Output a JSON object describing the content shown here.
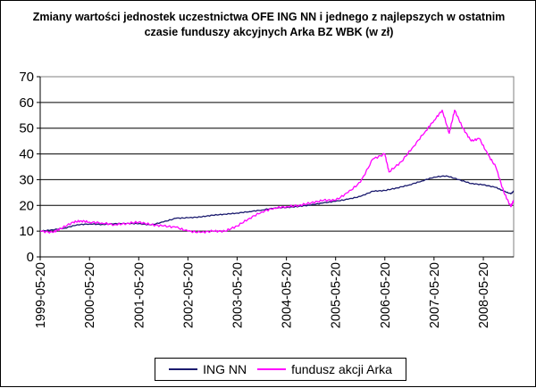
{
  "chart_data": {
    "type": "line",
    "title": "Zmiany wartości jednostek uczestnictwa OFE ING NN i jednego z najlepszych w ostatnim czasie funduszy akcyjnych Arka BZ WBK (w zł)",
    "xlabel": "",
    "ylabel": "",
    "ylim": [
      0,
      70
    ],
    "yticks": [
      0,
      10,
      20,
      30,
      40,
      50,
      60,
      70
    ],
    "xlim": [
      "1999-05-20",
      "2008-12-31"
    ],
    "x_tick_labels": [
      "1999-05-20",
      "2000-05-20",
      "2001-05-20",
      "2002-05-20",
      "2003-05-20",
      "2004-05-20",
      "2005-05-20",
      "2006-05-20",
      "2007-05-20",
      "2008-05-20"
    ],
    "grid": "horizontal",
    "legend_position": "bottom",
    "series": [
      {
        "name": "ING NN",
        "color": "#1a1a6e",
        "points": [
          [
            "1999-05-20",
            10.0
          ],
          [
            "1999-08-20",
            10.5
          ],
          [
            "1999-11-20",
            11.2
          ],
          [
            "2000-02-20",
            12.5
          ],
          [
            "2000-05-20",
            12.8
          ],
          [
            "2000-08-20",
            12.6
          ],
          [
            "2000-11-20",
            12.9
          ],
          [
            "2001-02-20",
            13.0
          ],
          [
            "2001-05-20",
            12.9
          ],
          [
            "2001-08-20",
            12.4
          ],
          [
            "2001-11-20",
            13.6
          ],
          [
            "2002-02-20",
            15.0
          ],
          [
            "2002-05-20",
            15.2
          ],
          [
            "2002-08-20",
            15.5
          ],
          [
            "2002-11-20",
            16.2
          ],
          [
            "2003-02-20",
            16.6
          ],
          [
            "2003-05-20",
            17.0
          ],
          [
            "2003-08-20",
            17.6
          ],
          [
            "2003-11-20",
            18.2
          ],
          [
            "2004-02-20",
            19.0
          ],
          [
            "2004-05-20",
            19.2
          ],
          [
            "2004-08-20",
            19.6
          ],
          [
            "2004-11-20",
            20.2
          ],
          [
            "2005-02-20",
            21.0
          ],
          [
            "2005-05-20",
            21.6
          ],
          [
            "2005-08-20",
            22.4
          ],
          [
            "2005-11-20",
            23.5
          ],
          [
            "2006-02-20",
            25.5
          ],
          [
            "2006-05-20",
            25.8
          ],
          [
            "2006-08-20",
            26.8
          ],
          [
            "2006-11-20",
            28.0
          ],
          [
            "2007-02-20",
            29.5
          ],
          [
            "2007-05-20",
            31.0
          ],
          [
            "2007-08-20",
            31.5
          ],
          [
            "2007-11-20",
            30.0
          ],
          [
            "2008-02-20",
            28.5
          ],
          [
            "2008-05-20",
            28.0
          ],
          [
            "2008-08-20",
            27.0
          ],
          [
            "2008-10-20",
            25.5
          ],
          [
            "2008-12-10",
            24.5
          ],
          [
            "2008-12-31",
            25.5
          ]
        ]
      },
      {
        "name": "fundusz akcji Arka",
        "color": "#ff00ff",
        "points": [
          [
            "1999-05-20",
            10.0
          ],
          [
            "1999-08-20",
            9.5
          ],
          [
            "1999-10-20",
            11.0
          ],
          [
            "2000-01-20",
            13.5
          ],
          [
            "2000-03-20",
            14.0
          ],
          [
            "2000-05-20",
            13.5
          ],
          [
            "2000-08-20",
            13.2
          ],
          [
            "2000-11-20",
            12.5
          ],
          [
            "2001-02-20",
            13.0
          ],
          [
            "2001-05-20",
            13.5
          ],
          [
            "2001-08-20",
            12.5
          ],
          [
            "2001-11-20",
            12.0
          ],
          [
            "2002-02-20",
            11.5
          ],
          [
            "2002-05-20",
            10.0
          ],
          [
            "2002-08-20",
            9.5
          ],
          [
            "2002-11-20",
            10.0
          ],
          [
            "2003-02-20",
            10.0
          ],
          [
            "2003-05-20",
            12.0
          ],
          [
            "2003-08-20",
            15.0
          ],
          [
            "2003-11-20",
            17.5
          ],
          [
            "2004-02-20",
            19.0
          ],
          [
            "2004-05-20",
            19.5
          ],
          [
            "2004-08-20",
            20.0
          ],
          [
            "2004-11-20",
            21.0
          ],
          [
            "2005-02-20",
            22.0
          ],
          [
            "2005-05-20",
            22.0
          ],
          [
            "2005-08-20",
            25.0
          ],
          [
            "2005-11-20",
            29.0
          ],
          [
            "2006-02-20",
            38.0
          ],
          [
            "2006-05-20",
            40.0
          ],
          [
            "2006-06-20",
            33.0
          ],
          [
            "2006-09-20",
            37.0
          ],
          [
            "2006-12-20",
            43.0
          ],
          [
            "2007-03-20",
            49.0
          ],
          [
            "2007-05-20",
            53.0
          ],
          [
            "2007-07-20",
            57.0
          ],
          [
            "2007-09-10",
            48.0
          ],
          [
            "2007-10-20",
            57.0
          ],
          [
            "2007-12-20",
            50.0
          ],
          [
            "2008-02-20",
            45.0
          ],
          [
            "2008-04-20",
            46.0
          ],
          [
            "2008-06-20",
            40.0
          ],
          [
            "2008-08-20",
            35.0
          ],
          [
            "2008-10-20",
            25.0
          ],
          [
            "2008-12-10",
            19.5
          ],
          [
            "2008-12-31",
            22.0
          ]
        ]
      }
    ]
  }
}
